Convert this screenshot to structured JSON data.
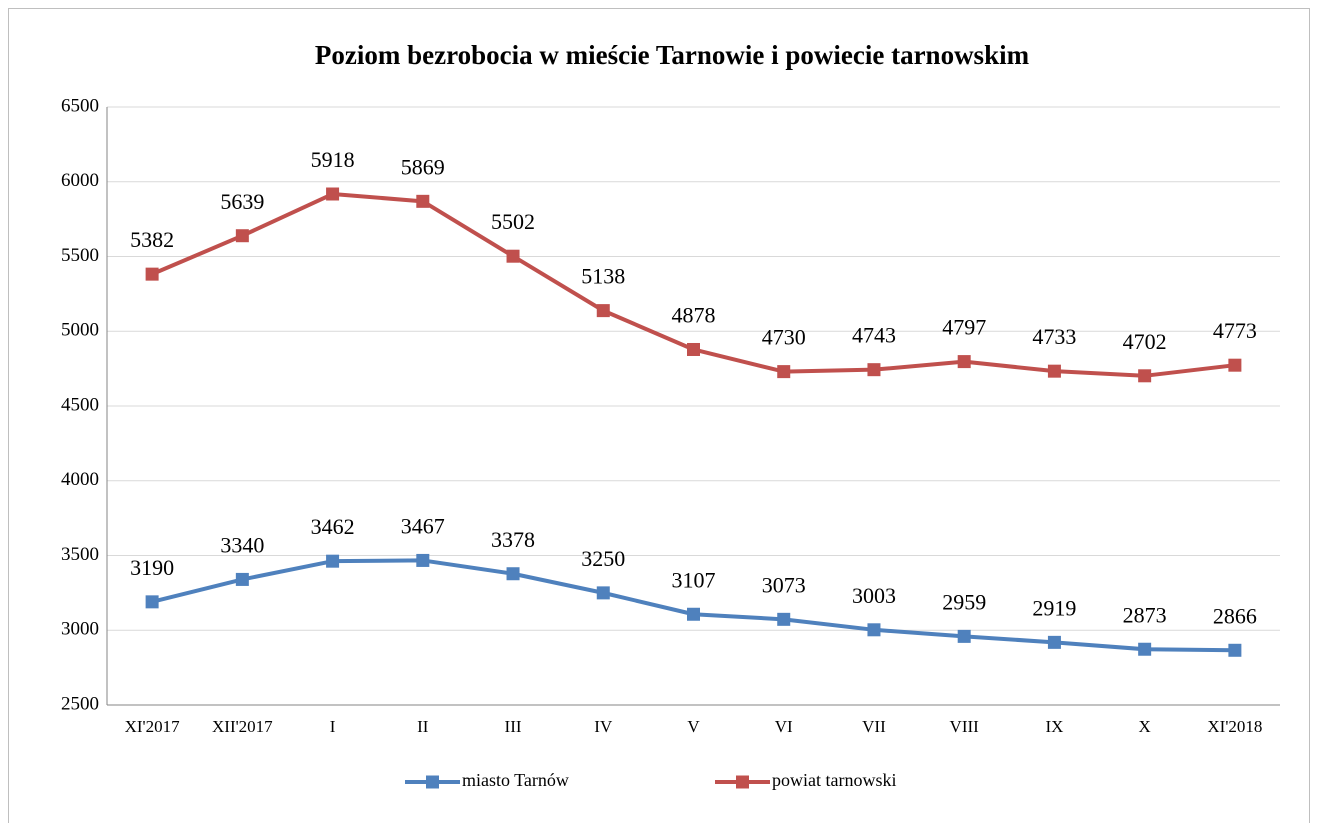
{
  "chart_data": {
    "type": "line",
    "title": "Poziom bezrobocia w mieście Tarnowie i powiecie tarnowskim",
    "categories": [
      "XI'2017",
      "XII'2017",
      "I",
      "II",
      "III",
      "IV",
      "V",
      "VI",
      "VII",
      "VIII",
      "IX",
      "X",
      "XI'2018"
    ],
    "series": [
      {
        "name": "miasto Tarnów",
        "color": "#4f81bd",
        "values": [
          3190,
          3340,
          3462,
          3467,
          3378,
          3250,
          3107,
          3073,
          3003,
          2959,
          2919,
          2873,
          2866
        ]
      },
      {
        "name": "powiat tarnowski",
        "color": "#c0504d",
        "values": [
          5382,
          5639,
          5918,
          5869,
          5502,
          5138,
          4878,
          4730,
          4743,
          4797,
          4733,
          4702,
          4773
        ]
      }
    ],
    "ylim": [
      2500,
      6500
    ],
    "yticks": [
      2500,
      3000,
      3500,
      4000,
      4500,
      5000,
      5500,
      6000,
      6500
    ],
    "grid": true,
    "legend": "bottom"
  }
}
